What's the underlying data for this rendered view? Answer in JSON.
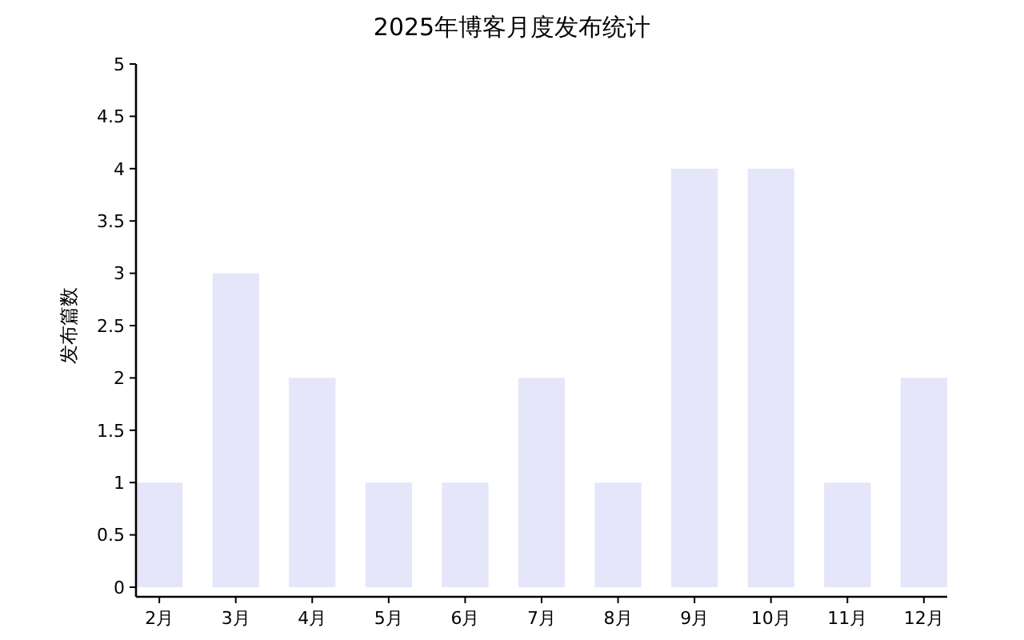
{
  "chart_data": {
    "type": "bar",
    "title": "2025年博客月度发布统计",
    "ylabel": "发布篇数",
    "categories": [
      "2月",
      "3月",
      "4月",
      "5月",
      "6月",
      "7月",
      "8月",
      "9月",
      "10月",
      "11月",
      "12月"
    ],
    "values": [
      1,
      3,
      2,
      1,
      1,
      2,
      1,
      4,
      4,
      1,
      2
    ],
    "color": "#e6e6fa",
    "ylim": [
      0,
      5
    ],
    "yticks": [
      0,
      0.5,
      1,
      1.5,
      2,
      2.5,
      3,
      3.5,
      4,
      4.5,
      5
    ],
    "grid": false
  }
}
